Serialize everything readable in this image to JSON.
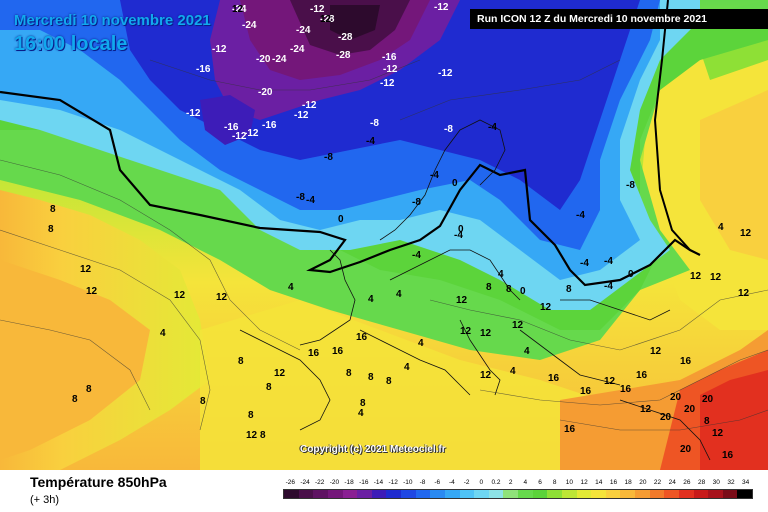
{
  "header": {
    "date": "Mercredi 10 novembre 2021",
    "time": "16:00 locale",
    "run": "Run ICON 12 Z du Mercredi 10 novembre 2021"
  },
  "copyright": "Copyright (c) 2021 Meteociel.fr",
  "footer": {
    "title": "Température 850hPa",
    "subtitle": "(+ 3h)"
  },
  "scale": {
    "labels": [
      "-26",
      "-24",
      "-22",
      "-20",
      "-18",
      "-16",
      "-14",
      "-12",
      "-10",
      "-8",
      "-6",
      "-4",
      "-2",
      "0",
      "0.2",
      "2",
      "4",
      "6",
      "8",
      "10",
      "12",
      "14",
      "16",
      "18",
      "20",
      "22",
      "24",
      "26",
      "28",
      "30",
      "32",
      "34"
    ],
    "colors": [
      "#2d0a2d",
      "#4a0f4a",
      "#5e1262",
      "#74177a",
      "#8a1f93",
      "#6b1fa3",
      "#3d1cb8",
      "#1f2bd0",
      "#1f47e3",
      "#2167ef",
      "#2a8af2",
      "#36a8f5",
      "#4fc3f6",
      "#6ed6f2",
      "#8de3e6",
      "#8fe27a",
      "#66d94c",
      "#5bd33a",
      "#8ee036",
      "#bde636",
      "#e3ea36",
      "#f5e43a",
      "#f9d03e",
      "#f8b83a",
      "#f59c33",
      "#f27a2b",
      "#ee5524",
      "#e2301f",
      "#c81a1a",
      "#a8121c",
      "#7a0c18",
      "#000000"
    ]
  },
  "map": {
    "labels": [
      "-24",
      "-28",
      "-24",
      "-24",
      "-12",
      "-24",
      "-28",
      "-12",
      "-12",
      "-24",
      "-16",
      "-28",
      "-16",
      "-12",
      "-20",
      "-12",
      "-12",
      "-16",
      "-20",
      "-12",
      "-12",
      "-8",
      "-12",
      "-16",
      "-12",
      "-12",
      "-8",
      "-8",
      "-4",
      "-4",
      "-8",
      "-8",
      "0",
      "-4",
      "-4",
      "-4",
      "-4",
      "0",
      "-4",
      "-4",
      "-8",
      "0",
      "0",
      "8",
      "8",
      "12",
      "4",
      "4",
      "4",
      "12",
      "8",
      "12",
      "12",
      "8",
      "8",
      "12",
      "4",
      "4",
      "4",
      "4",
      "4",
      "-4",
      "-4",
      "0",
      "12",
      "12",
      "12",
      "12",
      "4",
      "8",
      "8",
      "8",
      "8",
      "12",
      "12",
      "16",
      "12",
      "16",
      "12",
      "16",
      "16",
      "12",
      "16",
      "16",
      "12",
      "8",
      "4",
      "8",
      "8",
      "8",
      "8",
      "8",
      "8",
      "4",
      "12",
      "8",
      "12",
      "16",
      "20",
      "20",
      "20",
      "20",
      "20",
      "16",
      "16",
      "16",
      "12",
      "12",
      "12",
      "12",
      "12"
    ]
  }
}
